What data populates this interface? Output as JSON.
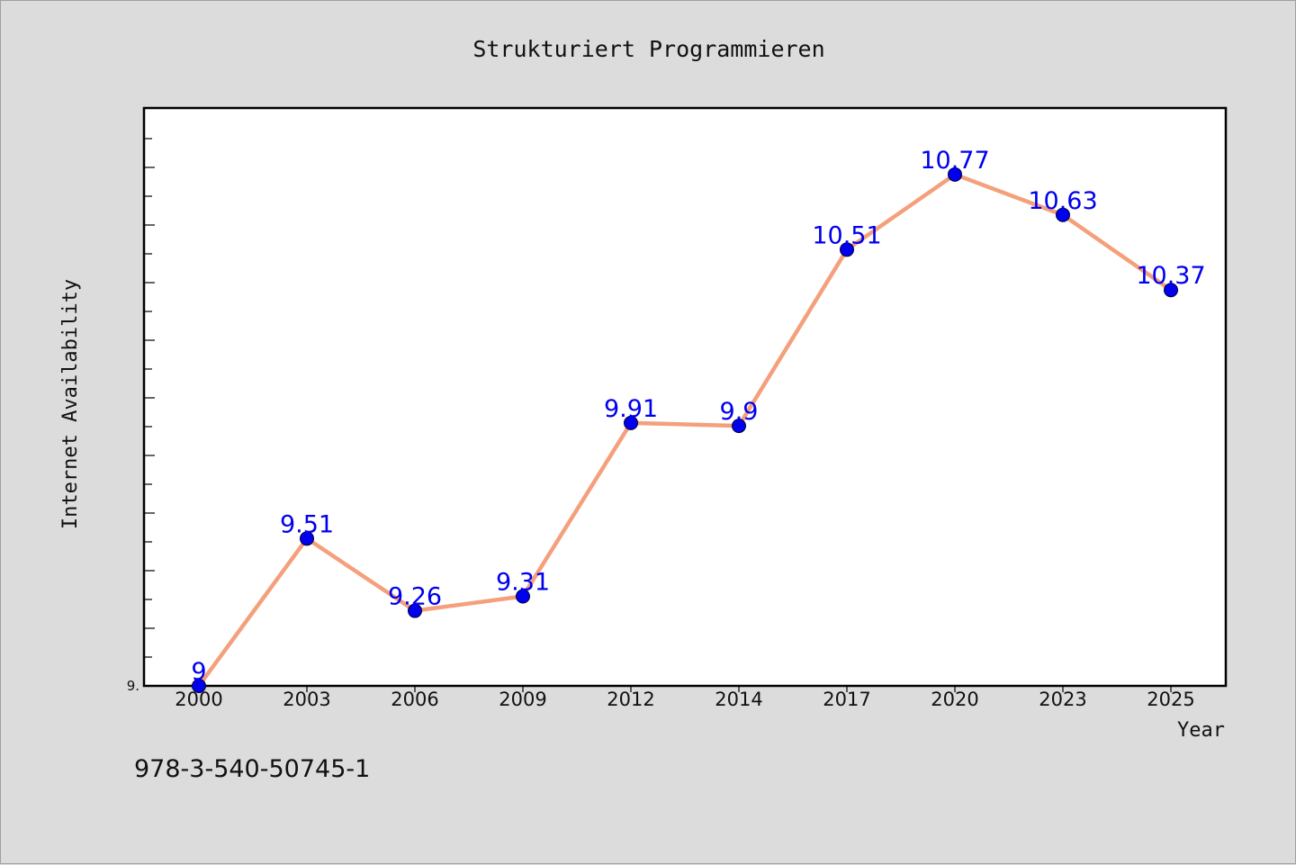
{
  "chart_data": {
    "type": "line",
    "title": "Strukturiert Programmieren",
    "xlabel": "Year",
    "ylabel": "Internet Availability",
    "categories": [
      "2000",
      "2003",
      "2006",
      "2009",
      "2012",
      "2014",
      "2017",
      "2020",
      "2023",
      "2025"
    ],
    "series": [
      {
        "values": [
          9,
          9.51,
          9.26,
          9.31,
          9.91,
          9.9,
          10.51,
          10.77,
          10.63,
          10.37
        ],
        "labels": [
          "9",
          "9.51",
          "9.26",
          "9.31",
          "9.91",
          "9.9",
          "10.51",
          "10.77",
          "10.63",
          "10.37"
        ],
        "line_color": "#f4a07c",
        "marker_color": "#0000ee"
      }
    ],
    "ylim": [
      9,
      11
    ],
    "y_tick_label": "9.",
    "grid": false,
    "legend": "none"
  },
  "footer": {
    "isbn": "978-3-540-50745-1"
  },
  "colors": {
    "background": "#dcdcdc",
    "plot_background": "#ffffff",
    "data_label": "#0000ee"
  }
}
